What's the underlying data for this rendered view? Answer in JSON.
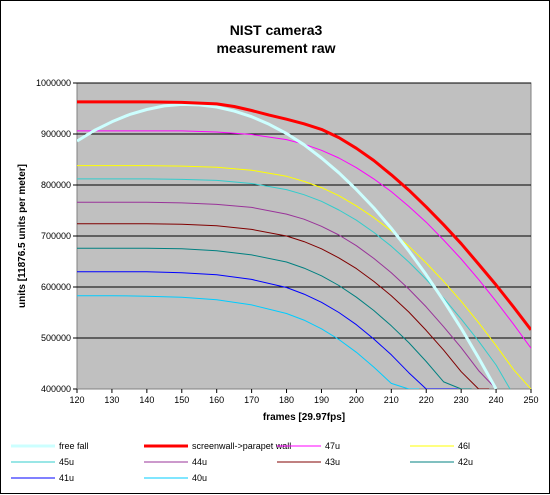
{
  "chart_data": {
    "type": "line",
    "title_line1": "NIST camera3",
    "title_line2": "measurement raw",
    "xlabel": "frames [29.97fps]",
    "ylabel": "units [11876.5 units per meter]",
    "xlim": [
      120,
      250
    ],
    "ylim": [
      400000,
      1000000
    ],
    "xticks": [
      "120",
      "130",
      "140",
      "150",
      "160",
      "170",
      "180",
      "190",
      "200",
      "210",
      "220",
      "230",
      "240",
      "250"
    ],
    "yticks": [
      "400000",
      "500000",
      "600000",
      "700000",
      "800000",
      "900000",
      "1000000"
    ],
    "grid": "horizontal",
    "plot_background": "#c0c0c0",
    "legend_position": "bottom",
    "series": [
      {
        "name": "free fall",
        "color": "#ccffff",
        "width": 3,
        "x": [
          120,
          125,
          130,
          135,
          140,
          145,
          150,
          155,
          160,
          165,
          170,
          175,
          180,
          185,
          190,
          195,
          200,
          205,
          210,
          215,
          220,
          225,
          230,
          235,
          240,
          245,
          250
        ],
        "y": [
          886000,
          907000,
          924000,
          938000,
          948000,
          955000,
          958000,
          957000,
          953000,
          945000,
          934000,
          919000,
          901000,
          879000,
          853000,
          824000,
          791000,
          755000,
          715000,
          671000,
          624000,
          573000,
          519000,
          461000,
          400000,
          null,
          null
        ]
      },
      {
        "name": "screenwall->parapet wall",
        "color": "#ff0000",
        "width": 3,
        "x": [
          120,
          130,
          140,
          150,
          160,
          165,
          170,
          175,
          180,
          185,
          190,
          195,
          200,
          205,
          210,
          215,
          220,
          225,
          230,
          235,
          240,
          245,
          250
        ],
        "y": [
          963000,
          963000,
          963000,
          962000,
          959000,
          954000,
          946000,
          937000,
          929000,
          920000,
          909000,
          893000,
          872000,
          848000,
          820000,
          790000,
          757000,
          722000,
          685000,
          645000,
          604000,
          561000,
          516000
        ]
      },
      {
        "name": "47u",
        "color": "#ff00ff",
        "width": 1,
        "x": [
          120,
          130,
          140,
          150,
          160,
          170,
          180,
          185,
          190,
          195,
          200,
          205,
          210,
          215,
          220,
          225,
          230,
          235,
          240,
          245,
          250
        ],
        "y": [
          906000,
          906000,
          906000,
          906000,
          904000,
          899000,
          889000,
          880000,
          868000,
          853000,
          834000,
          812000,
          787000,
          758000,
          727000,
          692000,
          655000,
          615000,
          572000,
          527000,
          480000
        ]
      },
      {
        "name": "46l",
        "color": "#ffff00",
        "width": 1,
        "x": [
          120,
          130,
          140,
          150,
          160,
          170,
          180,
          185,
          190,
          195,
          200,
          205,
          210,
          215,
          220,
          225,
          230,
          235,
          240,
          245,
          250
        ],
        "y": [
          838000,
          838000,
          838000,
          837000,
          835000,
          829000,
          817000,
          807000,
          795000,
          779000,
          759000,
          736000,
          710000,
          680000,
          647000,
          611000,
          572000,
          530000,
          485000,
          438000,
          400000
        ]
      },
      {
        "name": "45u",
        "color": "#33cccc",
        "width": 1,
        "x": [
          120,
          130,
          140,
          150,
          160,
          170,
          180,
          185,
          190,
          195,
          200,
          205,
          210,
          215,
          220,
          225,
          230,
          235,
          240,
          244
        ],
        "y": [
          812000,
          812000,
          812000,
          811000,
          809000,
          803000,
          791000,
          781000,
          768000,
          751000,
          731000,
          707000,
          680000,
          649000,
          615000,
          578000,
          537000,
          494000,
          447000,
          400000
        ]
      },
      {
        "name": "44u",
        "color": "#993399",
        "width": 1,
        "x": [
          120,
          130,
          140,
          150,
          160,
          170,
          180,
          185,
          190,
          195,
          200,
          205,
          210,
          215,
          220,
          225,
          230,
          235,
          240
        ],
        "y": [
          766000,
          766000,
          766000,
          765000,
          762000,
          756000,
          743000,
          733000,
          719000,
          702000,
          681000,
          656000,
          628000,
          596000,
          561000,
          522000,
          481000,
          436000,
          400000
        ]
      },
      {
        "name": "43u",
        "color": "#800000",
        "width": 1,
        "x": [
          120,
          130,
          140,
          150,
          160,
          170,
          180,
          185,
          190,
          195,
          200,
          205,
          210,
          215,
          220,
          225,
          230,
          235,
          238
        ],
        "y": [
          724000,
          724000,
          724000,
          723000,
          720000,
          713000,
          700000,
          689000,
          675000,
          657000,
          636000,
          611000,
          583000,
          551000,
          515000,
          476000,
          434000,
          400000,
          400000
        ]
      },
      {
        "name": "42u",
        "color": "#008080",
        "width": 1,
        "x": [
          120,
          130,
          140,
          150,
          160,
          170,
          180,
          185,
          190,
          195,
          200,
          205,
          210,
          215,
          220,
          225,
          230,
          233
        ],
        "y": [
          676000,
          676000,
          676000,
          675000,
          671000,
          663000,
          649000,
          637000,
          622000,
          603000,
          580000,
          554000,
          524000,
          491000,
          454000,
          414000,
          400000,
          400000
        ]
      },
      {
        "name": "41u",
        "color": "#0000ff",
        "width": 1,
        "x": [
          120,
          130,
          140,
          150,
          160,
          170,
          180,
          185,
          190,
          195,
          200,
          205,
          210,
          215,
          220,
          225,
          229
        ],
        "y": [
          630000,
          630000,
          630000,
          628000,
          624000,
          615000,
          599000,
          586000,
          570000,
          550000,
          526000,
          498000,
          467000,
          432000,
          400000,
          400000,
          400000
        ]
      },
      {
        "name": "40u",
        "color": "#00ccff",
        "width": 1,
        "x": [
          120,
          130,
          140,
          150,
          160,
          170,
          180,
          185,
          190,
          195,
          200,
          205,
          210,
          215,
          218
        ],
        "y": [
          583000,
          583000,
          582000,
          580000,
          575000,
          565000,
          548000,
          535000,
          518000,
          497000,
          472000,
          443000,
          411000,
          400000,
          400000
        ]
      }
    ]
  }
}
